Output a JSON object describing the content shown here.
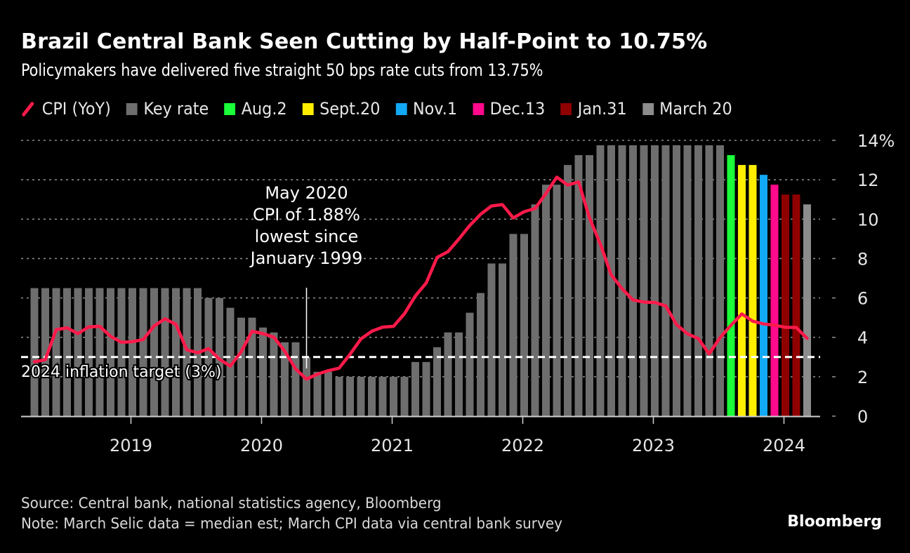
{
  "title": "Brazil Central Bank Seen Cutting by Half-Point to 10.75%",
  "subtitle": "Policymakers have delivered five straight 50 bps rate cuts from 13.75%",
  "legend": [
    {
      "label": "CPI (YoY)",
      "type": "line",
      "color": "#ff1a4a"
    },
    {
      "label": "Key rate",
      "type": "box",
      "color": "#6e6e6e"
    },
    {
      "label": "Aug.2",
      "type": "box",
      "color": "#1aff3a"
    },
    {
      "label": "Sept.20",
      "type": "box",
      "color": "#ffee00"
    },
    {
      "label": "Nov.1",
      "type": "box",
      "color": "#12a9f5"
    },
    {
      "label": "Dec.13",
      "type": "box",
      "color": "#ff0a8c"
    },
    {
      "label": "Jan.31",
      "type": "box",
      "color": "#8f0000"
    },
    {
      "label": "March 20",
      "type": "box",
      "color": "#8c8c8c"
    }
  ],
  "footer": {
    "source": "Source: Central bank, national statistics agency, Bloomberg",
    "note": "Note: March Selic data = median est; March CPI data via central bank survey",
    "brand": "Bloomberg"
  },
  "chart_data": {
    "type": "bar",
    "title": "Brazil Central Bank Seen Cutting by Half-Point to 10.75%",
    "xlabel": "",
    "ylabel": "",
    "ylim": [
      0,
      14
    ],
    "yticks": [
      0,
      2,
      4,
      6,
      8,
      10,
      12,
      14
    ],
    "ytick_labels": [
      "0",
      "2",
      "4",
      "6",
      "8",
      "10",
      "12",
      "14%"
    ],
    "xticks": [
      "2019",
      "2020",
      "2021",
      "2022",
      "2023",
      "2024"
    ],
    "grid": true,
    "y_axis_side": "right",
    "start_month": "2018-04",
    "categories": [
      "2018-04",
      "2018-05",
      "2018-06",
      "2018-07",
      "2018-08",
      "2018-09",
      "2018-10",
      "2018-11",
      "2018-12",
      "2019-01",
      "2019-02",
      "2019-03",
      "2019-04",
      "2019-05",
      "2019-06",
      "2019-07",
      "2019-08",
      "2019-09",
      "2019-10",
      "2019-11",
      "2019-12",
      "2020-01",
      "2020-02",
      "2020-03",
      "2020-04",
      "2020-05",
      "2020-06",
      "2020-07",
      "2020-08",
      "2020-09",
      "2020-10",
      "2020-11",
      "2020-12",
      "2021-01",
      "2021-02",
      "2021-03",
      "2021-04",
      "2021-05",
      "2021-06",
      "2021-07",
      "2021-08",
      "2021-09",
      "2021-10",
      "2021-11",
      "2021-12",
      "2022-01",
      "2022-02",
      "2022-03",
      "2022-04",
      "2022-05",
      "2022-06",
      "2022-07",
      "2022-08",
      "2022-09",
      "2022-10",
      "2022-11",
      "2022-12",
      "2023-01",
      "2023-02",
      "2023-03",
      "2023-04",
      "2023-05",
      "2023-06",
      "2023-07",
      "2023-08",
      "2023-09",
      "2023-10",
      "2023-11",
      "2023-12",
      "2024-01",
      "2024-02",
      "2024-03"
    ],
    "series": [
      {
        "name": "Key rate",
        "type": "bar",
        "values": [
          6.5,
          6.5,
          6.5,
          6.5,
          6.5,
          6.5,
          6.5,
          6.5,
          6.5,
          6.5,
          6.5,
          6.5,
          6.5,
          6.5,
          6.5,
          6.5,
          6.0,
          6.0,
          5.5,
          5.0,
          5.0,
          4.5,
          4.25,
          3.75,
          3.75,
          3.0,
          2.25,
          2.25,
          2.0,
          2.0,
          2.0,
          2.0,
          2.0,
          2.0,
          2.0,
          2.75,
          2.75,
          3.5,
          4.25,
          4.25,
          5.25,
          6.25,
          7.75,
          7.75,
          9.25,
          9.25,
          10.75,
          11.75,
          11.75,
          12.75,
          13.25,
          13.25,
          13.75,
          13.75,
          13.75,
          13.75,
          13.75,
          13.75,
          13.75,
          13.75,
          13.75,
          13.75,
          13.75,
          13.75,
          13.25,
          12.75,
          12.75,
          12.25,
          11.75,
          11.25,
          11.25,
          10.75
        ],
        "bar_colors": [
          "#6e6e6e",
          "#6e6e6e",
          "#6e6e6e",
          "#6e6e6e",
          "#6e6e6e",
          "#6e6e6e",
          "#6e6e6e",
          "#6e6e6e",
          "#6e6e6e",
          "#6e6e6e",
          "#6e6e6e",
          "#6e6e6e",
          "#6e6e6e",
          "#6e6e6e",
          "#6e6e6e",
          "#6e6e6e",
          "#6e6e6e",
          "#6e6e6e",
          "#6e6e6e",
          "#6e6e6e",
          "#6e6e6e",
          "#6e6e6e",
          "#6e6e6e",
          "#6e6e6e",
          "#6e6e6e",
          "#6e6e6e",
          "#6e6e6e",
          "#6e6e6e",
          "#6e6e6e",
          "#6e6e6e",
          "#6e6e6e",
          "#6e6e6e",
          "#6e6e6e",
          "#6e6e6e",
          "#6e6e6e",
          "#6e6e6e",
          "#6e6e6e",
          "#6e6e6e",
          "#6e6e6e",
          "#6e6e6e",
          "#6e6e6e",
          "#6e6e6e",
          "#6e6e6e",
          "#6e6e6e",
          "#6e6e6e",
          "#6e6e6e",
          "#6e6e6e",
          "#6e6e6e",
          "#6e6e6e",
          "#6e6e6e",
          "#6e6e6e",
          "#6e6e6e",
          "#6e6e6e",
          "#6e6e6e",
          "#6e6e6e",
          "#6e6e6e",
          "#6e6e6e",
          "#6e6e6e",
          "#6e6e6e",
          "#6e6e6e",
          "#6e6e6e",
          "#6e6e6e",
          "#6e6e6e",
          "#6e6e6e",
          "#1aff3a",
          "#ffee00",
          "#ffee00",
          "#12a9f5",
          "#ff0a8c",
          "#8f0000",
          "#8f0000",
          "#8c8c8c"
        ]
      },
      {
        "name": "CPI (YoY)",
        "type": "line",
        "color": "#ff1a4a",
        "values": [
          2.76,
          2.86,
          4.39,
          4.48,
          4.19,
          4.53,
          4.56,
          4.05,
          3.75,
          3.78,
          3.89,
          4.58,
          4.94,
          4.66,
          3.37,
          3.22,
          3.43,
          2.89,
          2.54,
          3.27,
          4.31,
          4.19,
          4.01,
          3.3,
          2.4,
          1.88,
          2.13,
          2.31,
          2.44,
          3.14,
          3.92,
          4.31,
          4.52,
          4.56,
          5.2,
          6.1,
          6.76,
          8.06,
          8.35,
          8.99,
          9.68,
          10.25,
          10.67,
          10.74,
          10.06,
          10.38,
          10.54,
          11.3,
          12.13,
          11.73,
          11.89,
          10.07,
          8.73,
          7.17,
          6.47,
          5.9,
          5.79,
          5.77,
          5.6,
          4.65,
          4.18,
          3.94,
          3.16,
          3.99,
          4.61,
          5.19,
          4.82,
          4.68,
          4.62,
          4.51,
          4.5,
          3.95
        ]
      }
    ],
    "reference_lines": [
      {
        "label": "2024 inflation target (3%)",
        "value": 3,
        "style": "dashed",
        "color": "#ffffff"
      }
    ],
    "annotations": [
      {
        "text": [
          "May 2020",
          "CPI of 1.88%",
          "lowest since",
          "January 1999"
        ],
        "x": "2020-05",
        "value": 1.88
      }
    ]
  }
}
